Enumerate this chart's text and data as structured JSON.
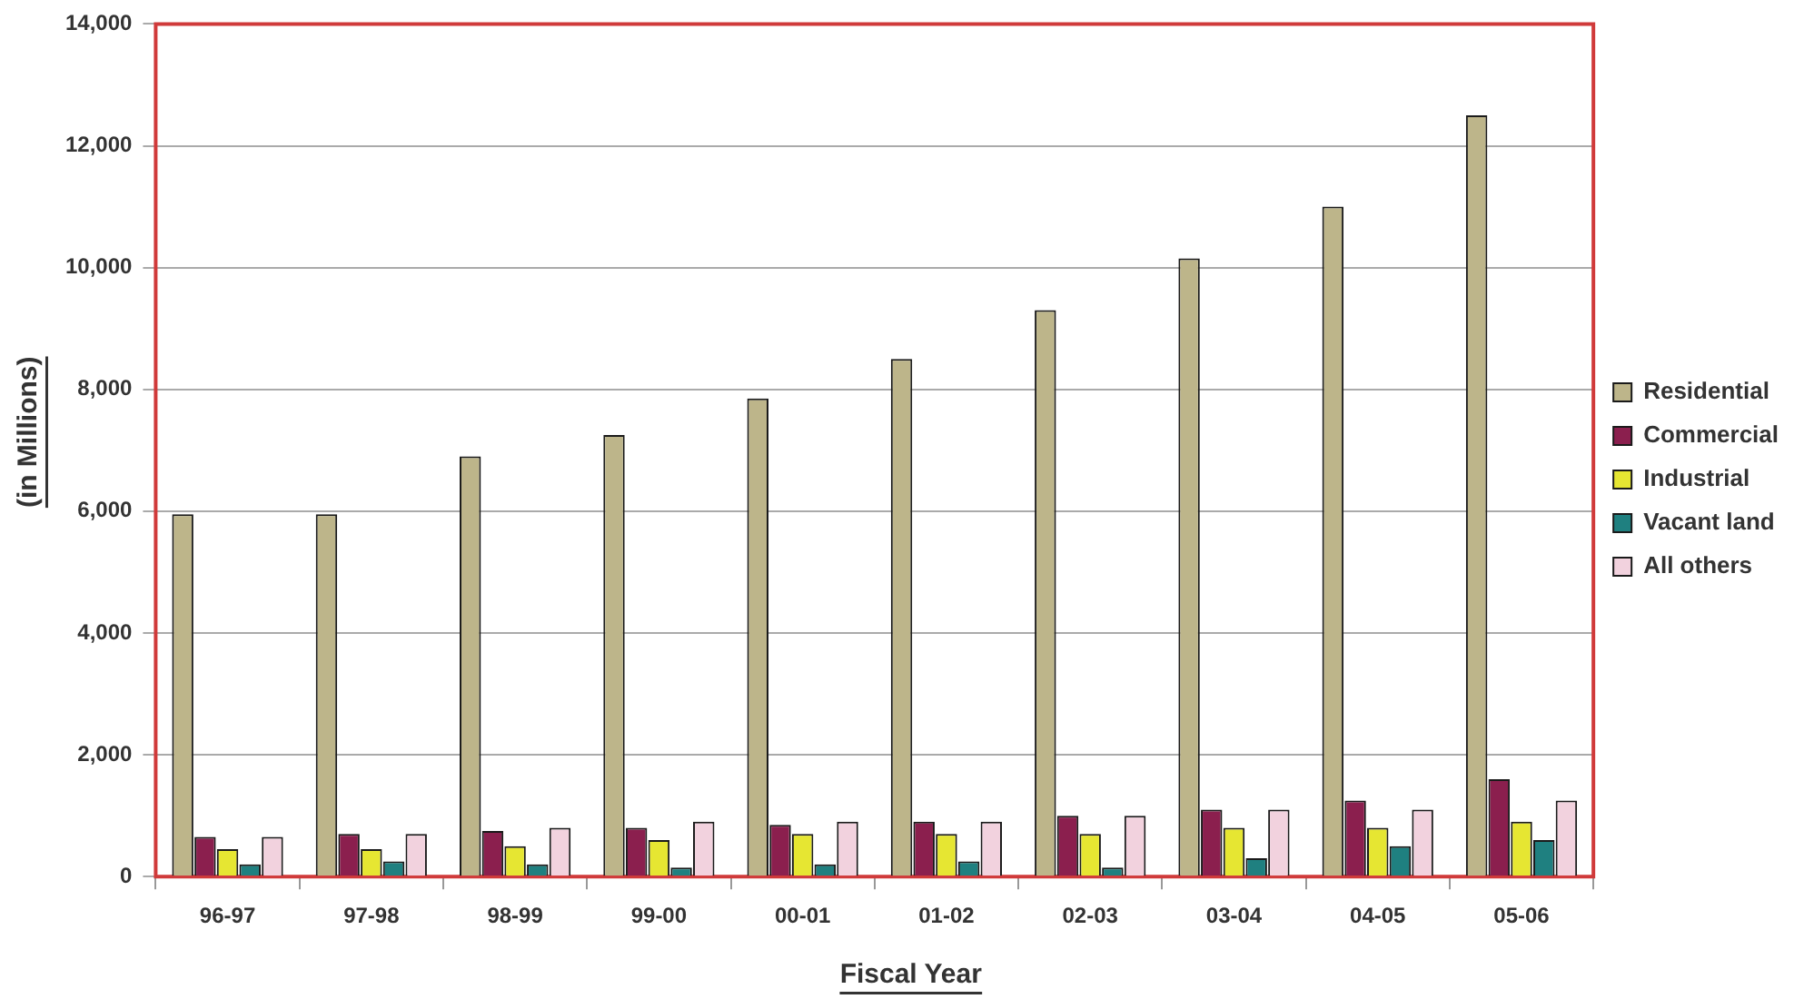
{
  "chart_data": {
    "type": "bar",
    "xlabel": "Fiscal Year",
    "ylabel": "(in Millions)",
    "categories": [
      "96-97",
      "97-98",
      "98-99",
      "99-00",
      "00-01",
      "01-02",
      "02-03",
      "03-04",
      "04-05",
      "05-06"
    ],
    "series": [
      {
        "name": "Residential",
        "color": "#bdb58a",
        "values": [
          5950,
          5950,
          6900,
          7250,
          7850,
          8500,
          9300,
          10150,
          11000,
          12500
        ]
      },
      {
        "name": "Commercial",
        "color": "#8b1f4e",
        "values": [
          650,
          700,
          750,
          800,
          850,
          900,
          1000,
          1100,
          1250,
          1600
        ]
      },
      {
        "name": "Industrial",
        "color": "#e6e632",
        "values": [
          450,
          450,
          500,
          600,
          700,
          700,
          700,
          800,
          800,
          900
        ]
      },
      {
        "name": "Vacant land",
        "color": "#1f8080",
        "values": [
          200,
          250,
          200,
          150,
          200,
          250,
          150,
          300,
          500,
          600
        ]
      },
      {
        "name": "All others",
        "color": "#f2d2de",
        "values": [
          650,
          700,
          800,
          900,
          900,
          900,
          1000,
          1100,
          1100,
          1250
        ]
      }
    ],
    "ylim": [
      0,
      14000
    ],
    "yticks": [
      0,
      {
        "value": 2000,
        "label": "2,000"
      },
      {
        "value": 4000,
        "label": "4,000"
      },
      {
        "value": 6000,
        "label": "6,000"
      },
      {
        "value": 8000,
        "label": "8,000"
      },
      {
        "value": 10000,
        "label": "10,000"
      },
      {
        "value": 12000,
        "label": "12,000"
      },
      {
        "value": 14000,
        "label": "14,000"
      }
    ],
    "grid": "y",
    "legend": "right"
  }
}
